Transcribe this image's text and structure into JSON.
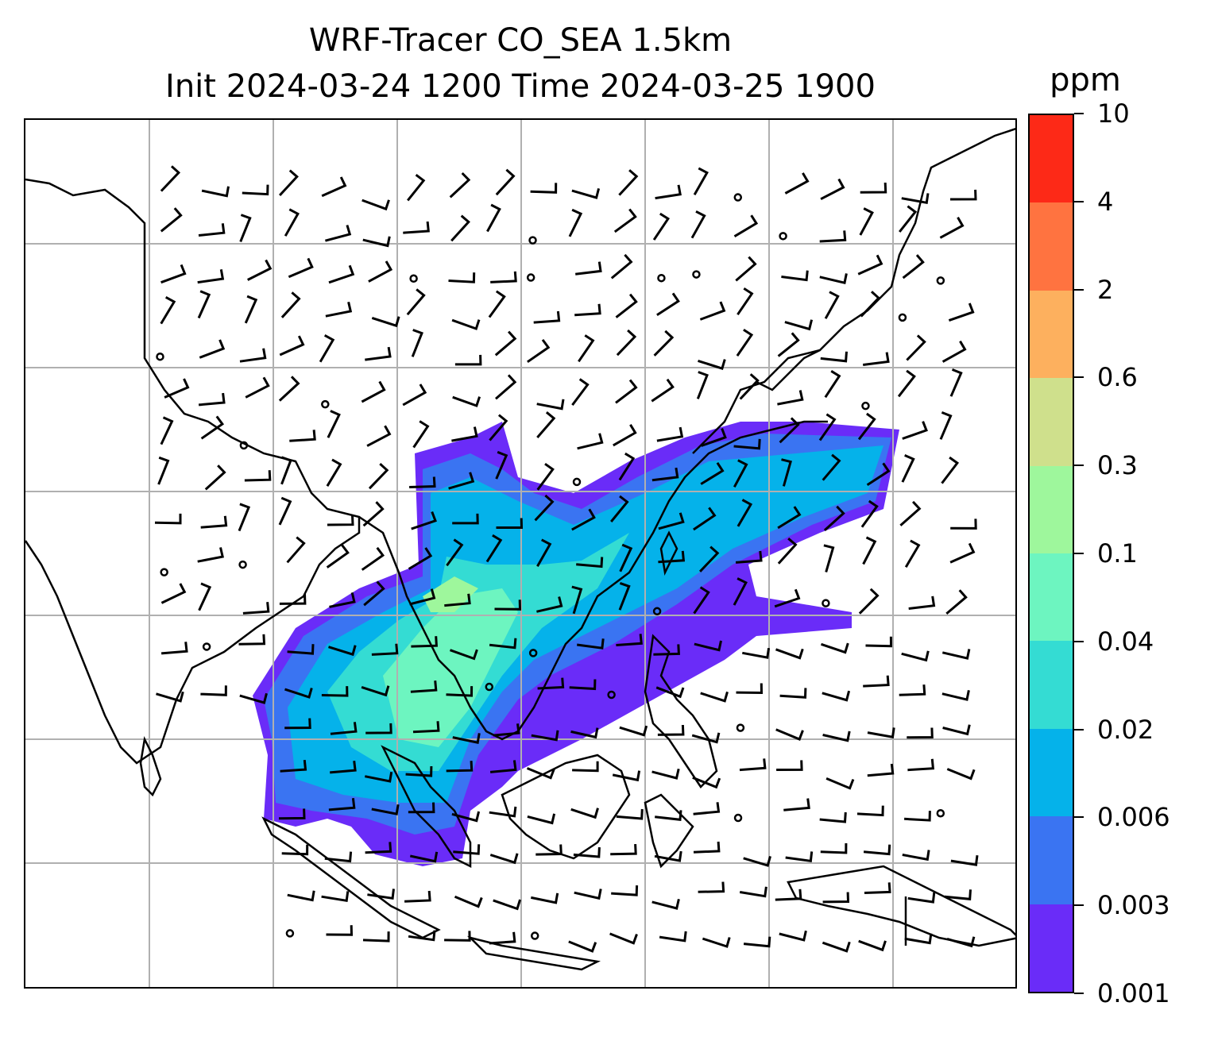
{
  "title": {
    "line1": "WRF-Tracer CO_SEA 1.5km",
    "line2": "Init 2024-03-24 1200 Time 2024-03-25 1900"
  },
  "colorbar": {
    "unit_label": "ppm",
    "tick_labels": [
      "0.001",
      "0.003",
      "0.006",
      "0.02",
      "0.04",
      "0.1",
      "0.3",
      "0.6",
      "2",
      "4",
      "10"
    ],
    "colors": [
      "#6a2cf8",
      "#3a74f2",
      "#05b2ea",
      "#34dcd3",
      "#6df5c0",
      "#9ef79c",
      "#cfe08c",
      "#fdb05e",
      "#ff7340",
      "#fd2917"
    ]
  },
  "map": {
    "gridlines": "on",
    "field": "CO tracer concentration with wind barbs",
    "region": "Southeast Asia"
  }
}
